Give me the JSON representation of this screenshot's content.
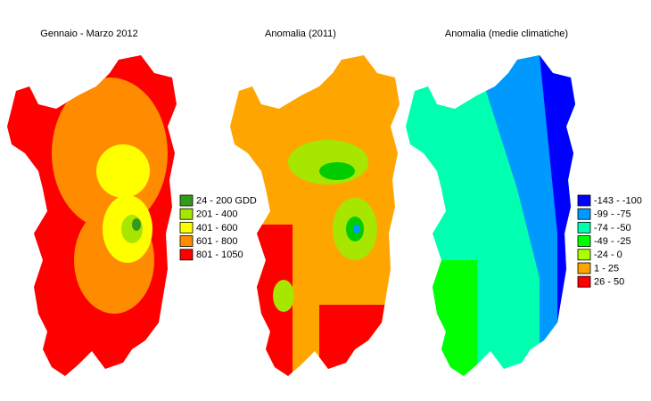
{
  "maps": [
    {
      "title": "Gennaio - Marzo 2012",
      "legend": [
        {
          "label": "24 - 200 GDD",
          "color": "#339a1a"
        },
        {
          "label": "201 - 400",
          "color": "#a6e600"
        },
        {
          "label": "401 - 600",
          "color": "#ffff00"
        },
        {
          "label": "601 - 800",
          "color": "#ff8c00"
        },
        {
          "label": "801 - 1050",
          "color": "#ff0000"
        }
      ]
    },
    {
      "title": "Anomalia (2011)"
    },
    {
      "title": "Anomalia (medie climatiche)",
      "legend": [
        {
          "label": "-143 - -100",
          "color": "#0000ff"
        },
        {
          "label": "-99 - -75",
          "color": "#0099ff"
        },
        {
          "label": "-74 - -50",
          "color": "#00ffb0"
        },
        {
          "label": "-49 - -25",
          "color": "#00ff00"
        },
        {
          "label": "-24 - 0",
          "color": "#aaff00"
        },
        {
          "label": "1 - 25",
          "color": "#ffa500"
        },
        {
          "label": "26 - 50",
          "color": "#ff0000"
        }
      ]
    }
  ]
}
